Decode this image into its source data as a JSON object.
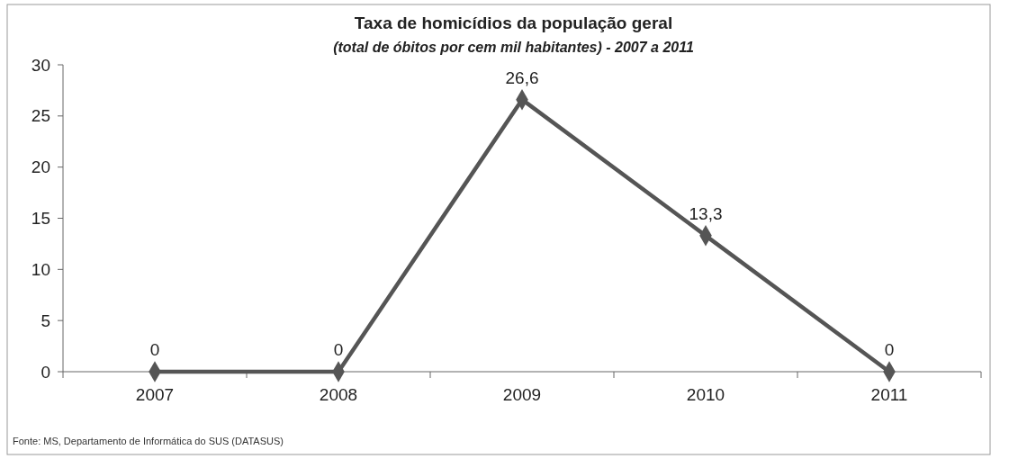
{
  "chart_data": {
    "type": "line",
    "title": "Taxa de homicídios da população geral",
    "subtitle": "(total de óbitos por cem mil habitantes) - 2007 a 2011",
    "categories": [
      "2007",
      "2008",
      "2009",
      "2010",
      "2011"
    ],
    "series": [
      {
        "color": "#555555",
        "values": [
          0,
          0,
          26.6,
          13.3,
          0
        ]
      }
    ],
    "value_labels": [
      "0",
      "0",
      "26,6",
      "13,3",
      "0"
    ],
    "ylim": [
      0,
      30
    ],
    "yticks": [
      0,
      5,
      10,
      15,
      20,
      25,
      30
    ],
    "grid": false,
    "marker": "diamond",
    "line_style": "solid",
    "annotations": [
      "Fonte: MS, Departamento de Informática do SUS (DATASUS)"
    ]
  }
}
